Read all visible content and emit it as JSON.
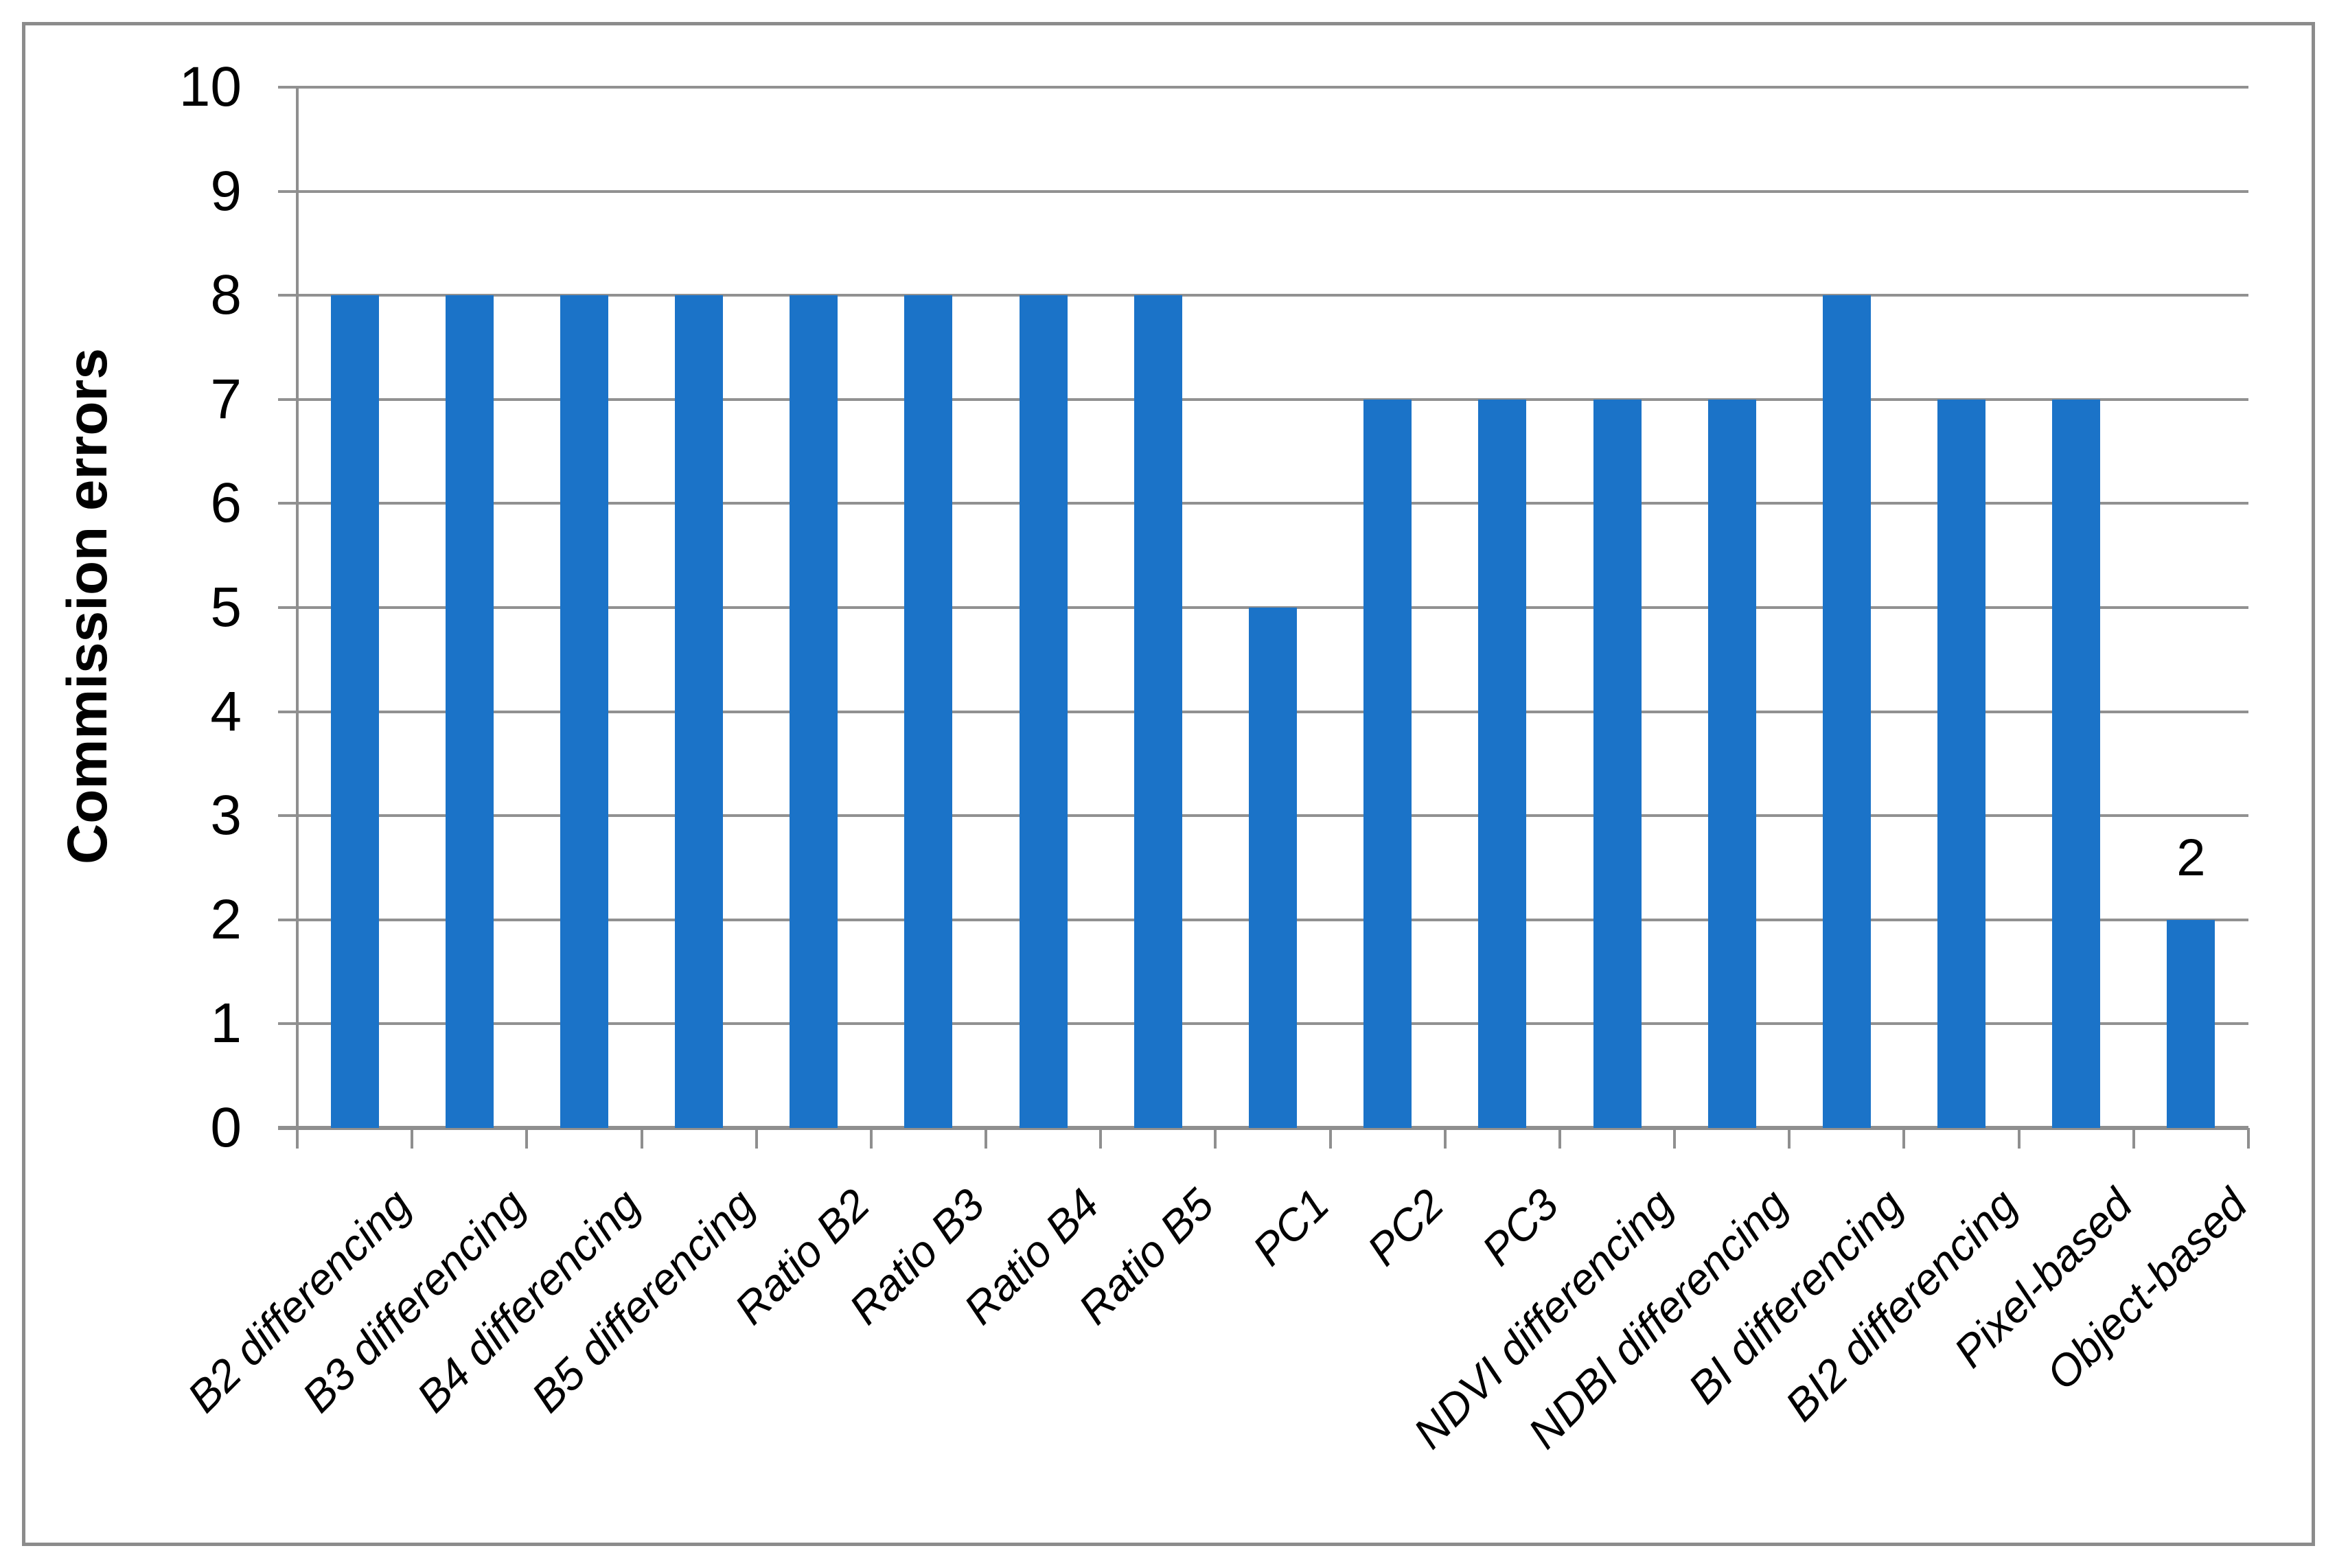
{
  "figure": {
    "background": "#ffffff",
    "border_color": "#8C8C8C"
  },
  "chart_data": {
    "type": "bar",
    "title": "",
    "categories": [
      "B2 differencing",
      "B3 differencing",
      "B4 differencing",
      "B5 differencing",
      "Ratio B2",
      "Ratio B3",
      "Ratio B4",
      "Ratio B5",
      "PC1",
      "PC2",
      "PC3",
      "NDVI differencing",
      "NDBI differencing",
      "BI differencing",
      "BI2 differencing",
      "Pixel-based",
      "Object-based"
    ],
    "values": [
      8,
      8,
      8,
      8,
      8,
      8,
      8,
      8,
      5,
      7,
      7,
      7,
      7,
      8,
      7,
      7,
      2
    ],
    "xlabel": "",
    "ylabel": "Commission errors",
    "ylim": [
      0,
      10
    ],
    "ytick_step": 1,
    "ytick_labels": [
      "0",
      "1",
      "2",
      "3",
      "4",
      "5",
      "6",
      "7",
      "8",
      "9",
      "10"
    ],
    "grid": "horizontal",
    "legend": "none",
    "bar_color": "#1B73C8",
    "grid_color": "#919191",
    "axis_color": "#8F8F8F",
    "text_color": "#000000",
    "data_labels": [
      {
        "index": 16,
        "category": "Object-based",
        "text": "2"
      }
    ]
  }
}
